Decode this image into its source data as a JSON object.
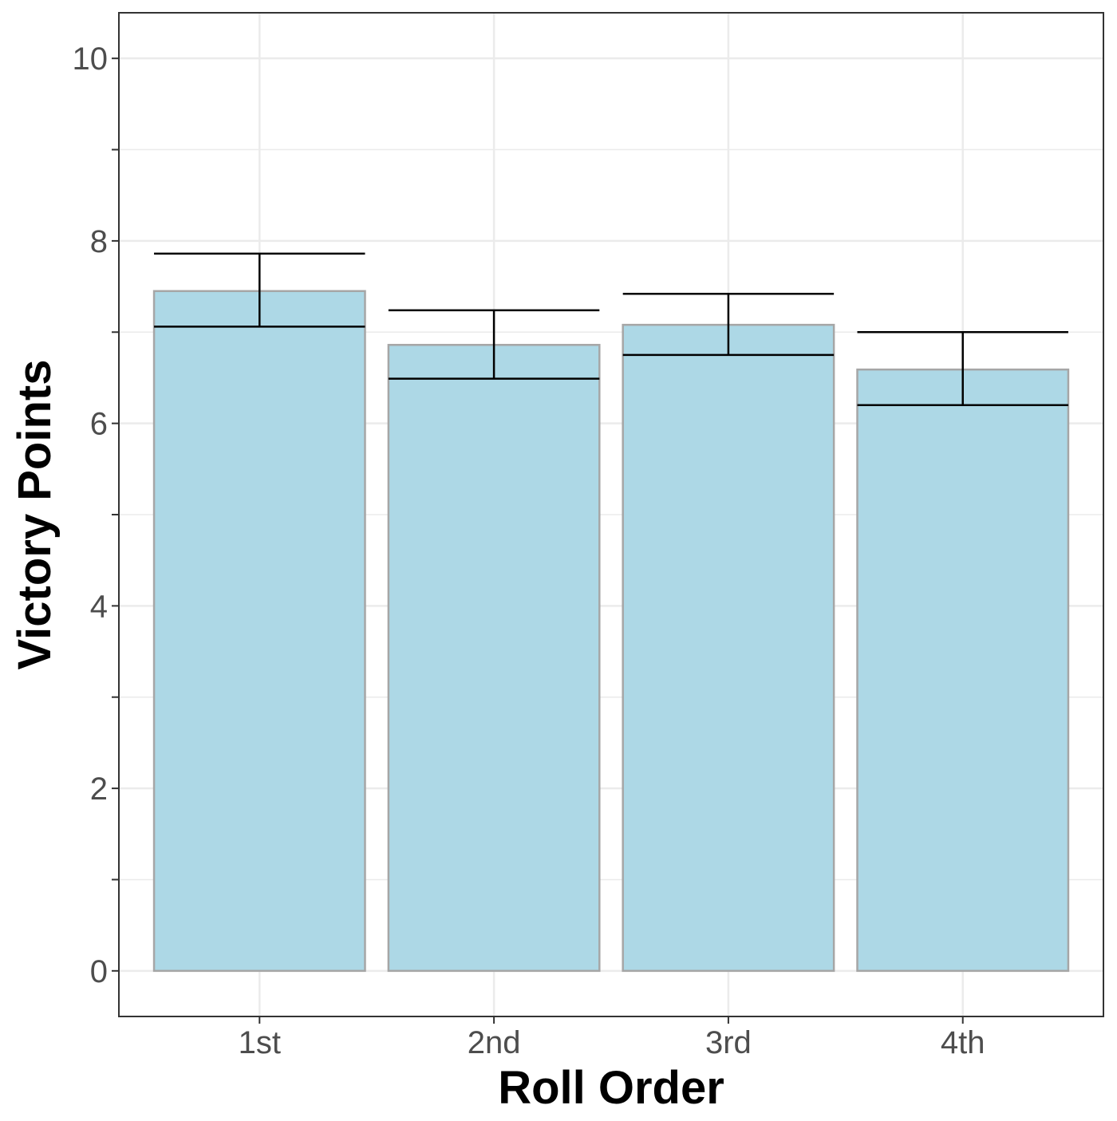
{
  "chart_data": {
    "type": "bar",
    "title": "",
    "xlabel": "Roll Order",
    "ylabel": "Victory Points",
    "categories": [
      "1st",
      "2nd",
      "3rd",
      "4th"
    ],
    "values": [
      7.45,
      6.86,
      7.08,
      6.59
    ],
    "error_bars": {
      "lower": [
        7.06,
        6.49,
        6.75,
        6.2
      ],
      "upper": [
        7.86,
        7.24,
        7.42,
        7.0
      ]
    },
    "ylim": [
      -0.5,
      10.5
    ],
    "y_ticks": [
      0,
      2,
      4,
      6,
      8,
      10
    ],
    "y_minor_ticks": [
      1,
      3,
      5,
      7,
      9
    ],
    "grid": true,
    "legend": "none",
    "colors": {
      "bar_fill": "#ADD8E6",
      "bar_outline": "#A6A6A6",
      "error_bar": "#000000",
      "grid": "#EBEBEB",
      "panel_border": "#333333",
      "tick_label": "#4d4d4d"
    }
  }
}
